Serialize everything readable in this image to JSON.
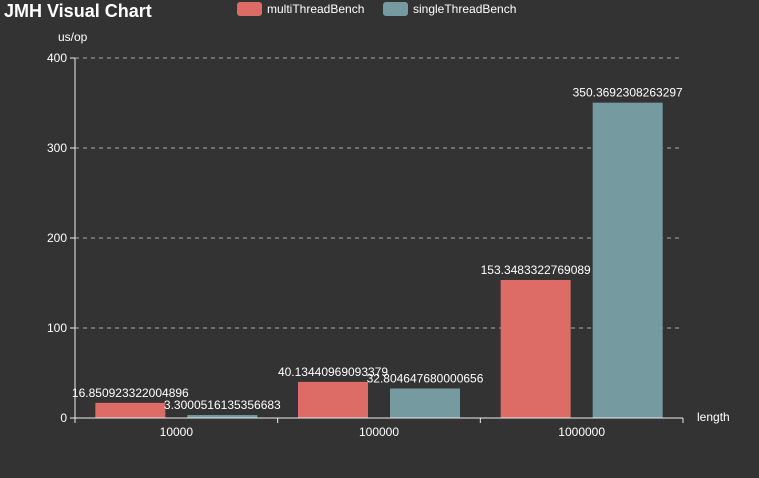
{
  "chart_data": {
    "type": "bar",
    "title": "JMH Visual Chart",
    "ylabel": "us/op",
    "xlabel": "length",
    "categories": [
      "10000",
      "100000",
      "1000000"
    ],
    "series": [
      {
        "name": "multiThreadBench",
        "color": "#dd6b66",
        "values": [
          16.850923322004896,
          40.13440969093379,
          153.3483322769089
        ]
      },
      {
        "name": "singleThreadBench",
        "color": "#759aa0",
        "values": [
          3.3000516135356683,
          32.804647680000656,
          350.3692308263297
        ]
      }
    ],
    "value_labels": [
      [
        "16.850923322004896",
        "40.13440969093379",
        "153.3483322769089"
      ],
      [
        "3.3000516135356683",
        "32.804647680000656",
        "350.3692308263297"
      ]
    ],
    "ylim": [
      0,
      400
    ],
    "yticks": [
      0,
      100,
      200,
      300,
      400
    ],
    "grid": true,
    "legend_position": "top-center"
  }
}
